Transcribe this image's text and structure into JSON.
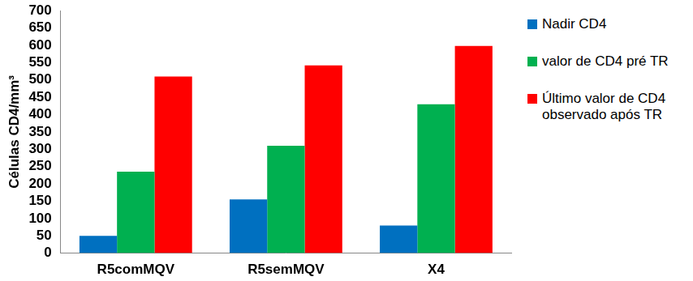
{
  "chart_data": {
    "type": "bar",
    "categories": [
      "R5comMQV",
      "R5semMQV",
      "X4"
    ],
    "y_label": "Células CD4/mm³",
    "series": [
      {
        "name": "Nadir CD4",
        "color": "#0070c0",
        "values": [
          50,
          155,
          80
        ]
      },
      {
        "name": "valor de CD4 pré TR",
        "color": "#00b050",
        "values": [
          235,
          310,
          430
        ]
      },
      {
        "name": "Último valor de CD4 observado após TR",
        "color": "#ff0000",
        "values": [
          510,
          542,
          598
        ]
      }
    ],
    "ylim": [
      0,
      700
    ],
    "yticks": [
      0,
      50,
      100,
      150,
      200,
      250,
      300,
      350,
      400,
      450,
      500,
      550,
      600,
      650,
      700
    ],
    "grid": false,
    "legend": "right"
  }
}
